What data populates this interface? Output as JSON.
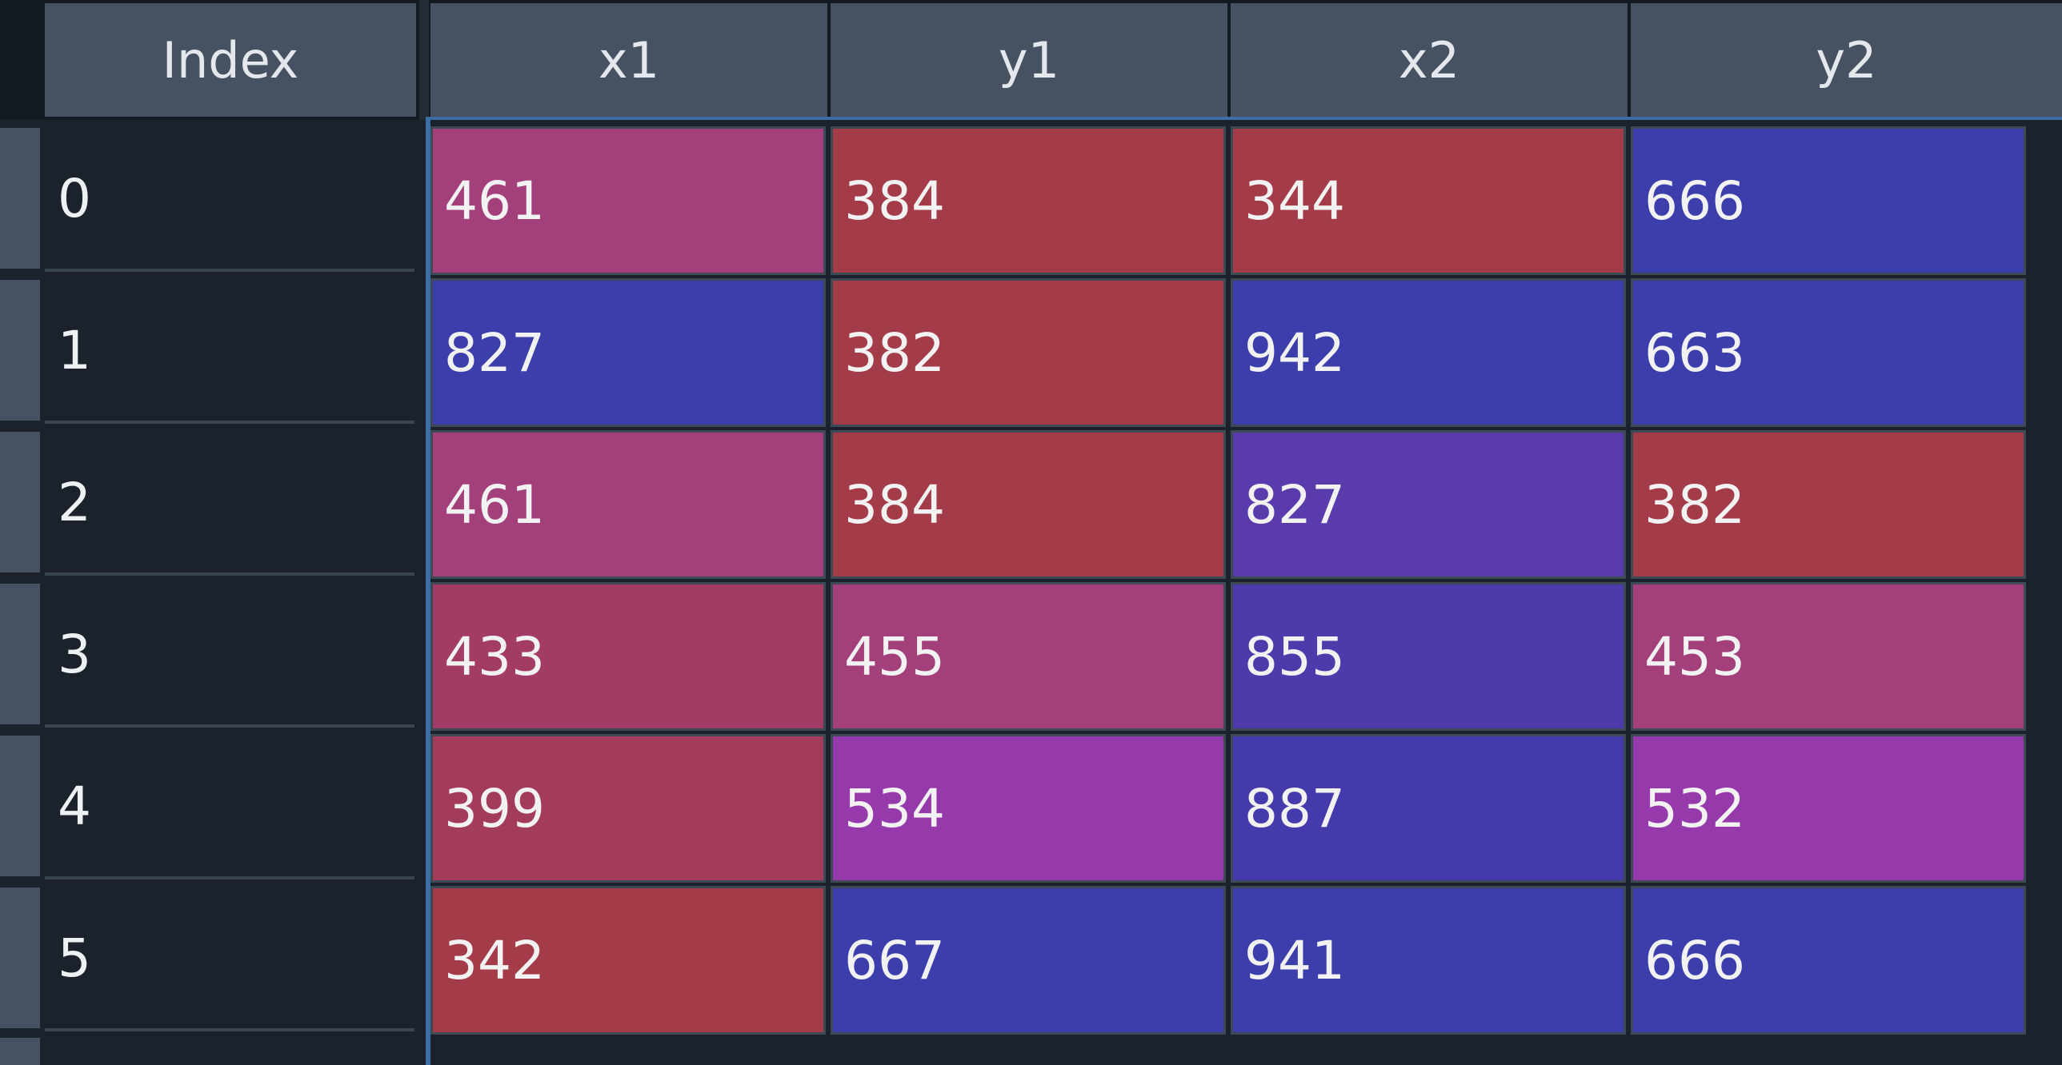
{
  "table": {
    "index_header": "Index",
    "columns": [
      "x1",
      "y1",
      "x2",
      "y2"
    ],
    "rows": [
      {
        "index": "0",
        "values": [
          "461",
          "384",
          "344",
          "666"
        ],
        "colors": [
          "#a33f7b",
          "#a33c48",
          "#a33c48",
          "#3b3eab"
        ]
      },
      {
        "index": "1",
        "values": [
          "827",
          "382",
          "942",
          "663"
        ],
        "colors": [
          "#3b3eab",
          "#a33c48",
          "#3b3eab",
          "#3b3eab"
        ]
      },
      {
        "index": "2",
        "values": [
          "461",
          "384",
          "827",
          "382"
        ],
        "colors": [
          "#a33f7b",
          "#a33c48",
          "#5a3bab",
          "#a33c48"
        ]
      },
      {
        "index": "3",
        "values": [
          "433",
          "455",
          "855",
          "453"
        ],
        "colors": [
          "#a33c65",
          "#a33f7b",
          "#4e3aab",
          "#a33f7b"
        ]
      },
      {
        "index": "4",
        "values": [
          "399",
          "534",
          "887",
          "532"
        ],
        "colors": [
          "#a33c5a",
          "#963aab",
          "#453aab",
          "#963aab"
        ]
      },
      {
        "index": "5",
        "values": [
          "342",
          "667",
          "941",
          "666"
        ],
        "colors": [
          "#a33c48",
          "#3b3eab",
          "#3b3eab",
          "#3b3eab"
        ]
      }
    ]
  },
  "colors": {
    "background": "#1b222c",
    "header_bg": "#465262",
    "selection_line": "#3a6ea5",
    "cell_border": "#3e4956"
  }
}
